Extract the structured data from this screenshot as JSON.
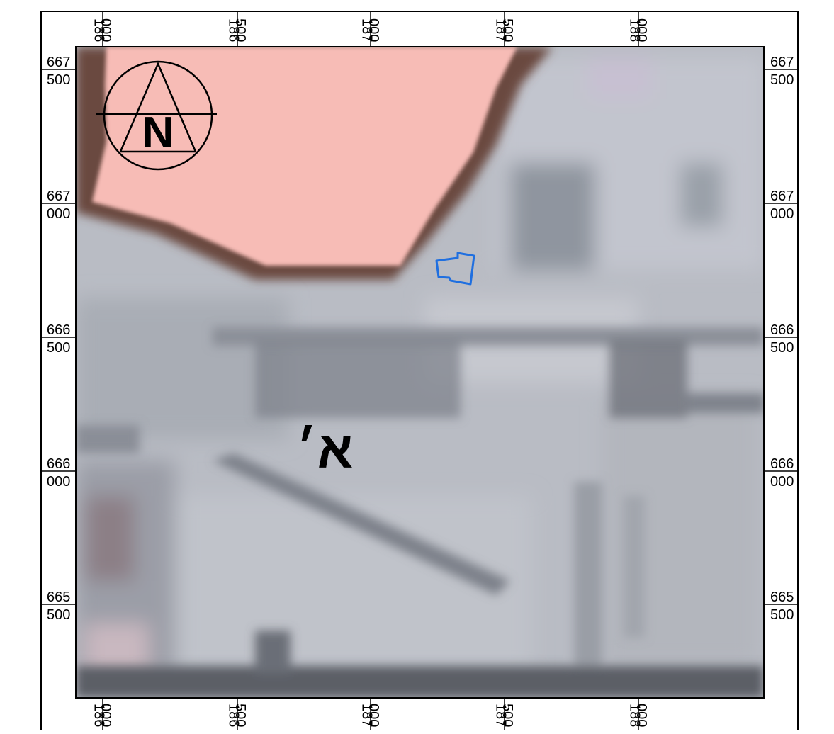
{
  "grid": {
    "x_ticks": [
      {
        "lines": [
          "186",
          "000"
        ]
      },
      {
        "lines": [
          "186",
          "500"
        ]
      },
      {
        "lines": [
          "187",
          "000"
        ]
      },
      {
        "lines": [
          "187",
          "500"
        ]
      },
      {
        "lines": [
          "188",
          "000"
        ]
      }
    ],
    "y_ticks": [
      {
        "lines": [
          "667",
          "500"
        ]
      },
      {
        "lines": [
          "667",
          "000"
        ]
      },
      {
        "lines": [
          "666",
          "500"
        ]
      },
      {
        "lines": [
          "666",
          "000"
        ]
      },
      {
        "lines": [
          "665",
          "500"
        ]
      }
    ]
  },
  "north_arrow": {
    "letter": "N"
  },
  "area_label": "א׳",
  "colors": {
    "zone_fill": "#f7bcb6",
    "zone_edge": "#6b4a40",
    "parcel_outline": "#1f6fe0",
    "imagery_base": "#b9bcc4"
  }
}
